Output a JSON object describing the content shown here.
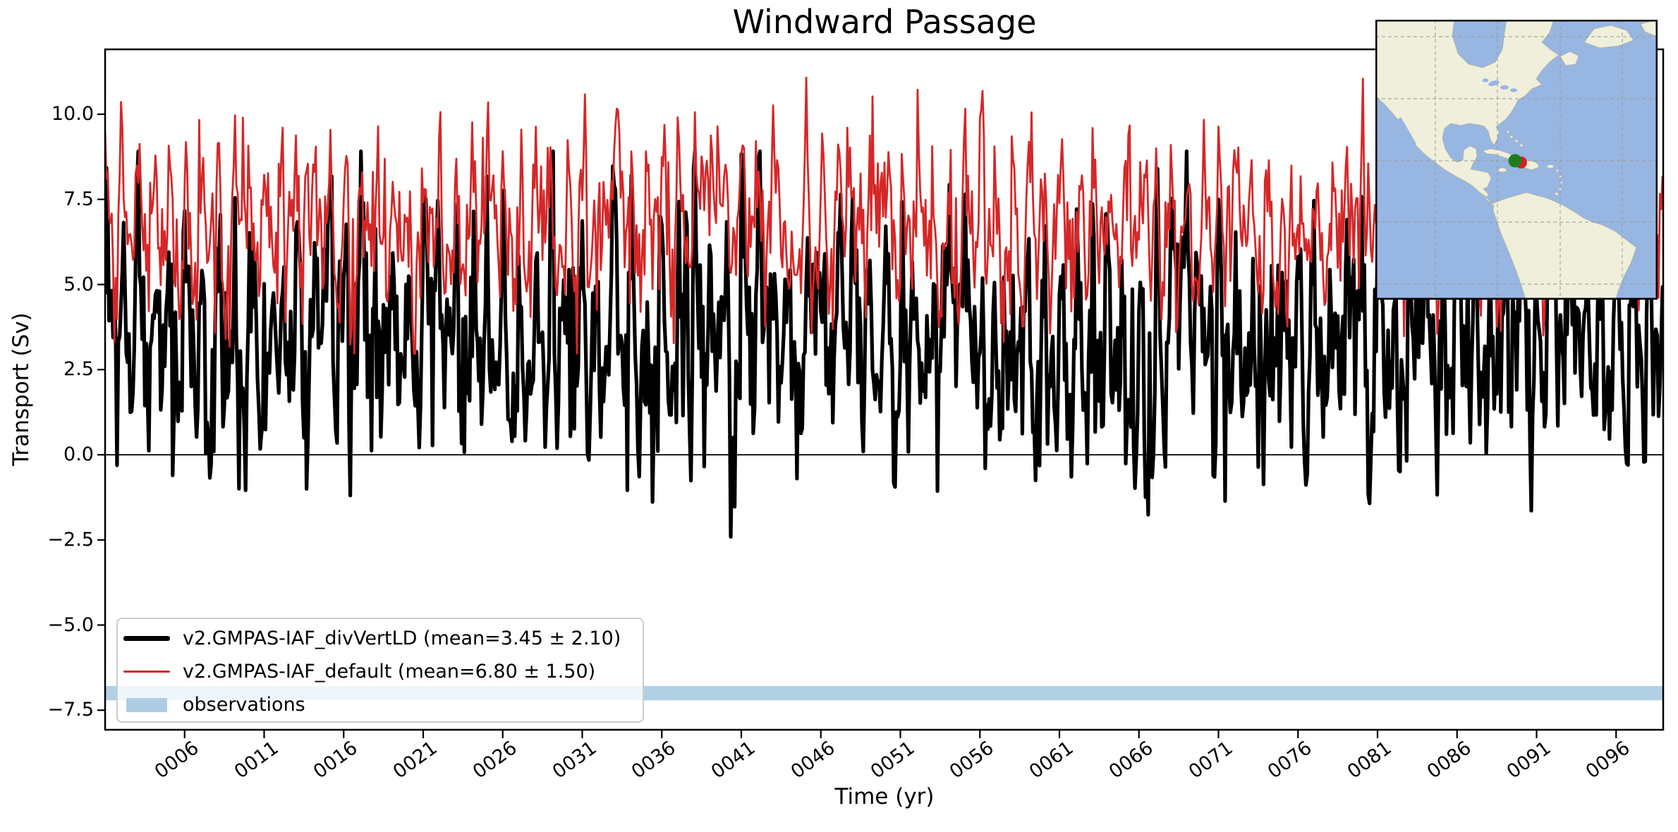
{
  "figure": {
    "title": "Windward Passage"
  },
  "axes": {
    "xlabel": "Time (yr)",
    "ylabel": "Transport (Sv)",
    "x_ticks": [
      {
        "year": 6,
        "label": "0006"
      },
      {
        "year": 11,
        "label": "0011"
      },
      {
        "year": 16,
        "label": "0016"
      },
      {
        "year": 21,
        "label": "0021"
      },
      {
        "year": 26,
        "label": "0026"
      },
      {
        "year": 31,
        "label": "0031"
      },
      {
        "year": 36,
        "label": "0036"
      },
      {
        "year": 41,
        "label": "0041"
      },
      {
        "year": 46,
        "label": "0046"
      },
      {
        "year": 51,
        "label": "0051"
      },
      {
        "year": 56,
        "label": "0056"
      },
      {
        "year": 61,
        "label": "0061"
      },
      {
        "year": 66,
        "label": "0066"
      },
      {
        "year": 71,
        "label": "0071"
      },
      {
        "year": 76,
        "label": "0076"
      },
      {
        "year": 81,
        "label": "0081"
      },
      {
        "year": 86,
        "label": "0086"
      },
      {
        "year": 91,
        "label": "0091"
      },
      {
        "year": 96,
        "label": "0096"
      }
    ],
    "y_ticks": [
      {
        "value": 10.0,
        "label": "10.0"
      },
      {
        "value": 7.5,
        "label": "7.5"
      },
      {
        "value": 5.0,
        "label": "5.0"
      },
      {
        "value": 2.5,
        "label": "2.5"
      },
      {
        "value": 0.0,
        "label": "0.0"
      },
      {
        "value": -2.5,
        "label": "−2.5"
      },
      {
        "value": -5.0,
        "label": "−5.0"
      },
      {
        "value": -7.5,
        "label": "−7.5"
      }
    ]
  },
  "legend": {
    "entries": [
      {
        "label": "v2.GMPAS-IAF_divVertLD (mean=3.45 ± 2.10)",
        "swatch": "line",
        "color": "#000000",
        "thickness": 7
      },
      {
        "label": "v2.GMPAS-IAF_default (mean=6.80 ± 1.50)",
        "swatch": "line",
        "color": "#d62728",
        "thickness": 3.5
      },
      {
        "label": "observations",
        "swatch": "patch",
        "color": "#aecde4",
        "thickness": 20
      }
    ]
  },
  "chart_data": {
    "type": "line",
    "title": "Windward Passage",
    "xlabel": "Time (yr)",
    "ylabel": "Transport (Sv)",
    "x_range_years": [
      1,
      98.9
    ],
    "ylim": [
      -8.1,
      11.9
    ],
    "sampling": "monthly",
    "grid": false,
    "legend_location": "lower left",
    "series": [
      {
        "name": "v2.GMPAS-IAF_divVertLD",
        "legend_label": "v2.GMPAS-IAF_divVertLD (mean=3.45 ± 2.10)",
        "mean": 3.45,
        "std": 2.1,
        "min": -2.4,
        "max": 8.9,
        "color": "#000000",
        "linewidth": 5.2,
        "seed": 1234,
        "ar": 0.5,
        "season_amp": 1.0,
        "zclip": [
          -2.79,
          2.6
        ]
      },
      {
        "name": "v2.GMPAS-IAF_default",
        "legend_label": "v2.GMPAS-IAF_default (mean=6.80 ± 1.50)",
        "mean": 6.8,
        "std": 1.5,
        "min": 3.0,
        "max": 11.05,
        "color": "#d62728",
        "linewidth": 2.8,
        "seed": 777,
        "ar": 0.5,
        "season_amp": 1.0,
        "zclip": [
          -2.55,
          2.85
        ]
      }
    ],
    "observations_band": {
      "label": "observations",
      "center": -7.0,
      "halfwidth": 0.21,
      "fill": "#1f77b4",
      "opacity": 0.35
    },
    "zero_line_y": 0.0,
    "note": "Dense monthly model-output curves; individual monthly values are not legible at screenshot scale, so they are regenerated deterministically from seeds to match the stated mean/std/min/max envelopes."
  },
  "inset_map": {
    "description": "Americas / Caribbean locator inset",
    "location_name": "Windward Passage",
    "ocean_color": "#97b6e2",
    "land_color": "#efefdb",
    "coast_color": "#b3b09e",
    "grid_color": "#9a9a9a",
    "frame_color": "#000000",
    "markers": [
      {
        "name": "red-marker",
        "color": "#d62020"
      },
      {
        "name": "green-marker",
        "color": "#1f7d1f"
      }
    ]
  }
}
